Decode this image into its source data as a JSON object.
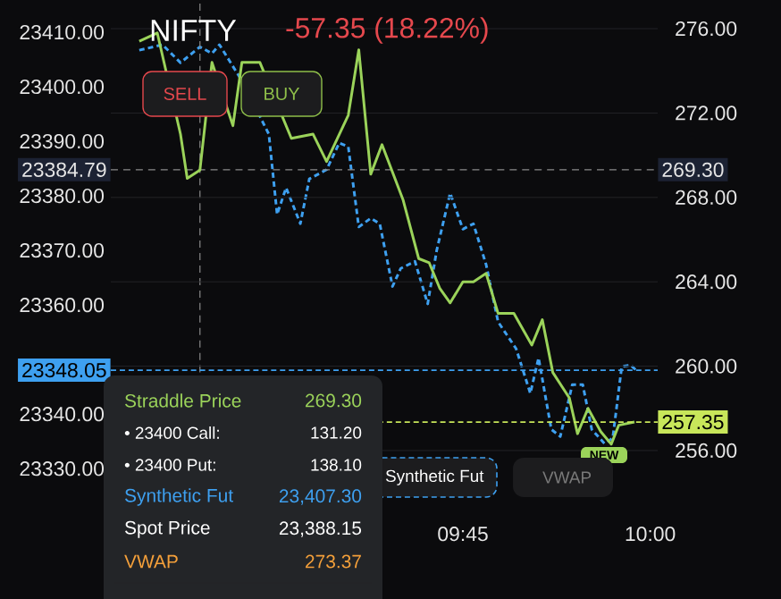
{
  "chart_data": {
    "type": "line",
    "title": "NIFTY",
    "subtitle": "-57.35 (18.22%)",
    "xlim": [
      9.28,
      10.01
    ],
    "xticks": [
      {
        "value": 9.75,
        "label": "09:45"
      },
      {
        "value": 10.0,
        "label": "10:00"
      }
    ],
    "ylim": [
      23322.5,
      23415.9
    ],
    "yticks": [
      {
        "value": 23330,
        "label": "23330.00"
      },
      {
        "value": 23340,
        "label": "23340.00"
      },
      {
        "value": 23360,
        "label": "23360.00"
      },
      {
        "value": 23370,
        "label": "23370.00"
      },
      {
        "value": 23380,
        "label": "23380.00"
      },
      {
        "value": 23390,
        "label": "23390.00"
      },
      {
        "value": 23400,
        "label": "23400.00"
      },
      {
        "value": 23410,
        "label": "23410.00"
      }
    ],
    "y2lim": [
      253.2,
      277.36
    ],
    "y2ticks": [
      {
        "value": 256,
        "label": "256.00"
      },
      {
        "value": 260,
        "label": "260.00"
      },
      {
        "value": 264,
        "label": "264.00"
      },
      {
        "value": 268,
        "label": "268.00"
      },
      {
        "value": 272,
        "label": "272.00"
      },
      {
        "value": 276,
        "label": "276.00"
      }
    ],
    "grid": "y",
    "legend": "bottom",
    "marker": "none",
    "series": [
      {
        "name": "Straddle Price",
        "axis": "y2",
        "color": "#9bd35a",
        "line_style": "solid",
        "x": [
          9.318,
          9.342,
          9.373,
          9.382,
          9.399,
          9.415,
          9.443,
          9.455,
          9.479,
          9.491,
          9.521,
          9.533,
          9.55,
          9.568,
          9.597,
          9.611,
          9.627,
          9.642,
          9.67,
          9.691,
          9.705,
          9.719,
          9.733,
          9.75,
          9.764,
          9.781,
          9.797,
          9.818,
          9.842,
          9.856,
          9.87,
          9.892,
          9.903,
          9.917,
          9.934,
          9.948,
          9.958,
          9.979
        ],
        "values": [
          275.4,
          275.8,
          271.0,
          268.9,
          269.3,
          274.4,
          271.4,
          274.4,
          274.4,
          null,
          270.8,
          null,
          271.0,
          269.7,
          271.9,
          275.0,
          269.1,
          270.5,
          267.9,
          265.1,
          264.9,
          263.7,
          263.0,
          264.0,
          264.0,
          264.4,
          262.5,
          262.5,
          261.0,
          262.2,
          259.7,
          258.5,
          256.8,
          258.0,
          256.9,
          256.3,
          257.2,
          257.35
        ]
      },
      {
        "name": "Synthetic Fut",
        "axis": "y",
        "color": "#3ea0f0",
        "line_style": "dotted",
        "x": [
          9.318,
          9.33,
          9.349,
          9.373,
          9.399,
          9.415,
          9.425,
          9.455,
          9.479,
          9.491,
          9.502,
          9.514,
          9.533,
          9.545,
          9.568,
          9.585,
          9.597,
          9.611,
          9.627,
          9.639,
          9.656,
          9.667,
          9.686,
          9.703,
          9.715,
          9.733,
          9.75,
          9.764,
          9.781,
          9.797,
          9.821,
          9.84,
          9.851,
          9.868,
          9.88,
          9.896,
          9.91,
          9.922,
          9.939,
          9.95,
          9.962,
          9.974,
          9.981
        ],
        "values": [
          23406.7,
          null,
          23407.7,
          23404.4,
          23407.3,
          23406.1,
          23407.7,
          23401.1,
          null,
          23391.3,
          23376.6,
          23381.5,
          23374.9,
          23383.1,
          23384.8,
          23389.7,
          23389.0,
          23374.3,
          23375.9,
          23374.9,
          23363.4,
          23366.7,
          23368.0,
          23360.2,
          23370.0,
          23380.5,
          23373.9,
          23374.9,
          23367.4,
          23356.9,
          23352.0,
          23343.8,
          23350.3,
          23337.2,
          23335.9,
          23345.4,
          23345.4,
          23337.2,
          23334.6,
          23335.6,
          23348.7,
          23349.0,
          23348.05
        ]
      }
    ],
    "ref_lines": [
      {
        "axis": "x",
        "value": 9.399,
        "color": "#8a8a8a",
        "line_style": "dashed"
      },
      {
        "axis": "y",
        "value": 23384.79,
        "label": "23384.79",
        "color": "#8a8a8a",
        "line_style": "dashed"
      },
      {
        "axis": "y",
        "value": 23348.05,
        "label": "23348.05",
        "color": "#3ea0f0",
        "line_style": "dotted"
      },
      {
        "axis": "y2",
        "value": 257.35,
        "label": "257.35",
        "color": "#c8e65a",
        "line_style": "dotted"
      }
    ],
    "annotations": [
      "SELL",
      "BUY",
      "NEW",
      "269.30",
      "• 23400 Call:",
      "131.20",
      "• 23400 Put:",
      "138.10",
      "23,407.30",
      "Spot Price",
      "23,388.15",
      "VWAP",
      "273.37",
      "VWAP",
      "269.30"
    ]
  }
}
